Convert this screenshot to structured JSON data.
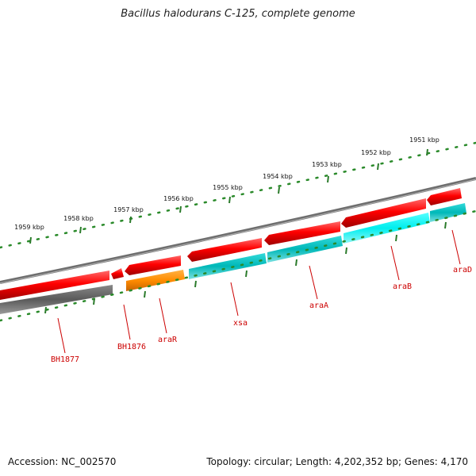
{
  "title": "Bacillus halodurans C-125, complete genome",
  "footer": {
    "accession": "Accession: NC_002570",
    "topology": "Topology: circular; Length: 4,202,352 bp; Genes: 4,170"
  },
  "colors": {
    "feature_red": "#ee0000",
    "feature_gray": "#555555",
    "feature_orange": "#ff8c00",
    "feature_cyan": "#00cccc",
    "feature_cyan_bright": "#00f5f5",
    "ruler_green": "#2a7a2a",
    "label_red": "#cc0000",
    "backbone_gray": "#7a7a7a"
  },
  "ruler_labels": [
    "1959 kbp",
    "1958 kbp",
    "1957 kbp",
    "1956 kbp",
    "1955 kbp",
    "1954 kbp",
    "1953 kbp",
    "1952 kbp",
    "1951 kbp"
  ],
  "genes": [
    {
      "name": "BH1877",
      "color": "feature_gray"
    },
    {
      "name": "BH1876",
      "color": "feature_red"
    },
    {
      "name": "araR",
      "color": "feature_orange"
    },
    {
      "name": "xsa",
      "color": "feature_cyan"
    },
    {
      "name": "araA",
      "color": "feature_cyan"
    },
    {
      "name": "araB",
      "color": "feature_cyan_bright"
    },
    {
      "name": "araD",
      "color": "feature_cyan"
    }
  ]
}
